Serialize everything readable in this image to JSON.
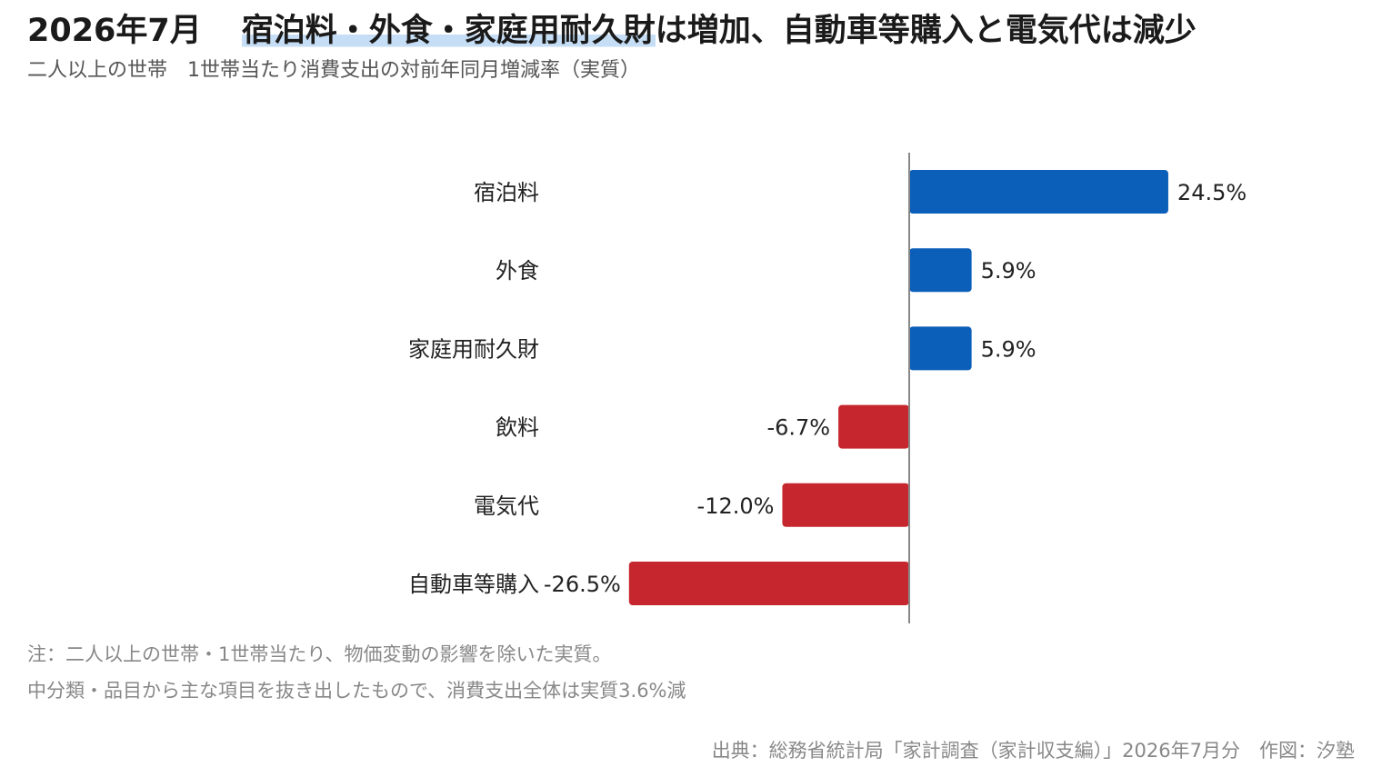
{
  "header": {
    "date": "2026年7月",
    "title_highlight": "宿泊料・外食・家庭用耐久財",
    "title_rest": "は増加、自動車等購入と電気代は減少",
    "subtitle": "二人以上の世帯　1世帯当たり消費支出の対前年同月増減率（実質）"
  },
  "chart_data": {
    "type": "bar",
    "orientation": "horizontal",
    "categories": [
      "宿泊料",
      "外食",
      "家庭用耐久財",
      "飲料",
      "電気代",
      "自動車等購入"
    ],
    "values": [
      24.5,
      5.9,
      5.9,
      -6.7,
      -12.0,
      -26.5
    ],
    "value_labels": [
      "24.5%",
      "5.9%",
      "5.9%",
      "-6.7%",
      "-12.0%",
      "-26.5%"
    ],
    "unit": "%",
    "colors": {
      "positive": "#0b5fb8",
      "negative": "#c6272f",
      "axis": "#888888"
    },
    "grid": false,
    "legend": "none"
  },
  "notes": {
    "line1": "注：二人以上の世帯・1世帯当たり、物価変動の影響を除いた実質。",
    "line2": "中分類・品目から主な項目を抜き出したもので、消費支出全体は実質3.6%減"
  },
  "source": "出典：総務省統計局「家計調査（家計収支編）」2026年7月分　作図：汐塾"
}
